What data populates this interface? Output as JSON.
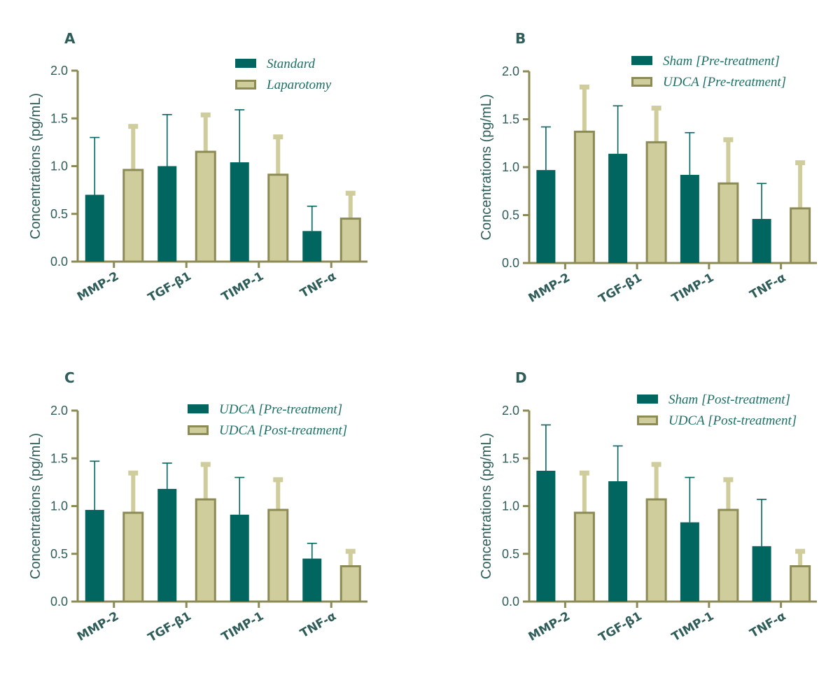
{
  "colors": {
    "series1": "#00665f",
    "series2": "#cfcd9b",
    "series2_edge": "#8c8a55",
    "axis": "#8c8a55",
    "text": "#2e5d5a"
  },
  "chart_data": [
    {
      "type": "bar",
      "panel": "A",
      "categories": [
        "MMP-2",
        "TGF-β1",
        "TIMP-1",
        "TNF-α"
      ],
      "ylabel": "Concentrations (pg/mL)",
      "ylim": [
        0,
        2.0
      ],
      "yticks": [
        "0.0",
        "0.5",
        "1.0",
        "1.5",
        "2.0"
      ],
      "legend_position": "top-right",
      "series": [
        {
          "name": "Standard",
          "values": [
            0.7,
            1.0,
            1.04,
            0.32
          ],
          "errors": [
            0.6,
            0.54,
            0.55,
            0.26
          ]
        },
        {
          "name": "Laparotomy",
          "values": [
            0.96,
            1.15,
            0.91,
            0.45
          ],
          "errors": [
            0.46,
            0.39,
            0.4,
            0.27
          ]
        }
      ]
    },
    {
      "type": "bar",
      "panel": "B",
      "categories": [
        "MMP-2",
        "TGF-β1",
        "TIMP-1",
        "TNF-α"
      ],
      "ylabel": "Concentrations (pg/mL)",
      "ylim": [
        0,
        2.0
      ],
      "yticks": [
        "0.0",
        "0.5",
        "1.0",
        "1.5",
        "2.0"
      ],
      "legend_position": "top-right",
      "series": [
        {
          "name": "Sham [Pre-treatment]",
          "values": [
            0.97,
            1.14,
            0.92,
            0.46
          ],
          "errors": [
            0.45,
            0.5,
            0.44,
            0.37
          ]
        },
        {
          "name": "UDCA [Pre-treatment]",
          "values": [
            1.37,
            1.26,
            0.83,
            0.57
          ],
          "errors": [
            0.47,
            0.36,
            0.46,
            0.48
          ]
        }
      ]
    },
    {
      "type": "bar",
      "panel": "C",
      "categories": [
        "MMP-2",
        "TGF-β1",
        "TIMP-1",
        "TNF-α"
      ],
      "ylabel": "Concentrations (pg/mL)",
      "ylim": [
        0,
        2.0
      ],
      "yticks": [
        "0.0",
        "0.5",
        "1.0",
        "1.5",
        "2.0"
      ],
      "legend_position": "top-right",
      "series": [
        {
          "name": "UDCA [Pre-treatment]",
          "values": [
            0.96,
            1.18,
            0.91,
            0.45
          ],
          "errors": [
            0.51,
            0.27,
            0.39,
            0.16
          ]
        },
        {
          "name": "UDCA [Post-treatment]",
          "values": [
            0.93,
            1.07,
            0.96,
            0.37
          ],
          "errors": [
            0.42,
            0.37,
            0.32,
            0.16
          ]
        }
      ]
    },
    {
      "type": "bar",
      "panel": "D",
      "categories": [
        "MMP-2",
        "TGF-β1",
        "TIMP-1",
        "TNF-α"
      ],
      "ylabel": "Concentrations (pg/mL)",
      "ylim": [
        0,
        2.0
      ],
      "yticks": [
        "0.0",
        "0.5",
        "1.0",
        "1.5",
        "2.0"
      ],
      "legend_position": "top-right",
      "series": [
        {
          "name": "Sham [Post-treatment]",
          "values": [
            1.37,
            1.26,
            0.83,
            0.58
          ],
          "errors": [
            0.48,
            0.37,
            0.47,
            0.49
          ]
        },
        {
          "name": "UDCA [Post-treatment]",
          "values": [
            0.93,
            1.07,
            0.96,
            0.37
          ],
          "errors": [
            0.42,
            0.37,
            0.32,
            0.16
          ]
        }
      ]
    }
  ]
}
